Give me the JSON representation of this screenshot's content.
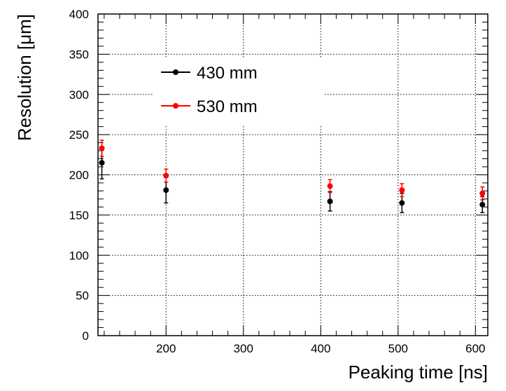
{
  "chart_data": {
    "type": "scatter",
    "title": "",
    "xlabel": "Peaking time [ns]",
    "ylabel": "Resolution [μm]",
    "xlim": [
      112,
      616
    ],
    "ylim": [
      0,
      400
    ],
    "x_ticks": [
      200,
      300,
      400,
      500,
      600
    ],
    "x_tick_labels": [
      "200",
      "300",
      "400",
      "500",
      "600"
    ],
    "y_ticks": [
      0,
      50,
      100,
      150,
      200,
      250,
      300,
      350,
      400
    ],
    "y_tick_labels": [
      "0",
      "50",
      "100",
      "150",
      "200",
      "250",
      "300",
      "350",
      "400"
    ],
    "grid": true,
    "legend_position": "top-left",
    "series": [
      {
        "name": "430 mm",
        "color": "#000000",
        "points": [
          {
            "x": 117,
            "y": 215,
            "err": 20
          },
          {
            "x": 200,
            "y": 181,
            "err": 16
          },
          {
            "x": 412,
            "y": 167,
            "err": 12
          },
          {
            "x": 505,
            "y": 165,
            "err": 12
          },
          {
            "x": 609,
            "y": 163,
            "err": 10
          }
        ]
      },
      {
        "name": "530 mm",
        "color": "#ff0000",
        "points": [
          {
            "x": 117,
            "y": 233,
            "err": 10
          },
          {
            "x": 200,
            "y": 199,
            "err": 8
          },
          {
            "x": 412,
            "y": 186,
            "err": 8
          },
          {
            "x": 505,
            "y": 181,
            "err": 8
          },
          {
            "x": 609,
            "y": 177,
            "err": 8
          }
        ]
      }
    ]
  }
}
